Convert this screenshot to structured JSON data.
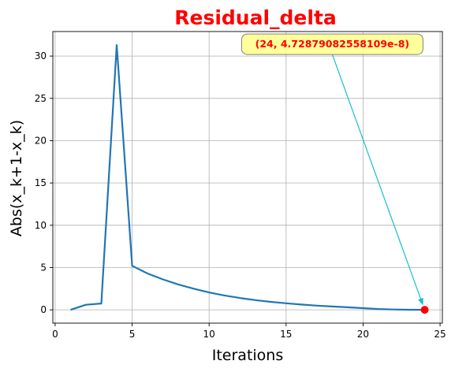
{
  "chart_data": {
    "type": "line",
    "title": "Residual_delta",
    "xlabel": "Iterations",
    "ylabel": "Abs(x_k+1-x_k)",
    "xlim": [
      -0.15,
      25.15
    ],
    "ylim": [
      -1.57,
      32.9
    ],
    "grid": true,
    "x_ticks": [
      0,
      5,
      10,
      15,
      20,
      25
    ],
    "y_ticks": [
      0,
      5,
      10,
      15,
      20,
      25,
      30
    ],
    "series": [
      {
        "color": "#1f77b4",
        "x": [
          1,
          2,
          3,
          4,
          5,
          6,
          7,
          8,
          9,
          10,
          11,
          12,
          13,
          14,
          15,
          16,
          17,
          18,
          19,
          20,
          21,
          22,
          23,
          24
        ],
        "y": [
          0.0,
          0.6,
          0.75,
          31.3,
          5.2,
          4.3,
          3.6,
          3.0,
          2.5,
          2.05,
          1.7,
          1.4,
          1.15,
          0.95,
          0.78,
          0.63,
          0.5,
          0.4,
          0.3,
          0.2,
          0.1,
          0.04,
          0.01,
          4.73e-08
        ]
      }
    ],
    "highlight_point": {
      "x": 24,
      "y": 4.73e-08,
      "color": "#ff0000"
    },
    "annotation": {
      "text": "(24, 4.72879082558109e-8)",
      "text_color": "#ff0000",
      "box_color": "#ffff8a",
      "arrow_color": "#17becf",
      "anchor_x": 18,
      "anchor_y": 31.4
    }
  }
}
